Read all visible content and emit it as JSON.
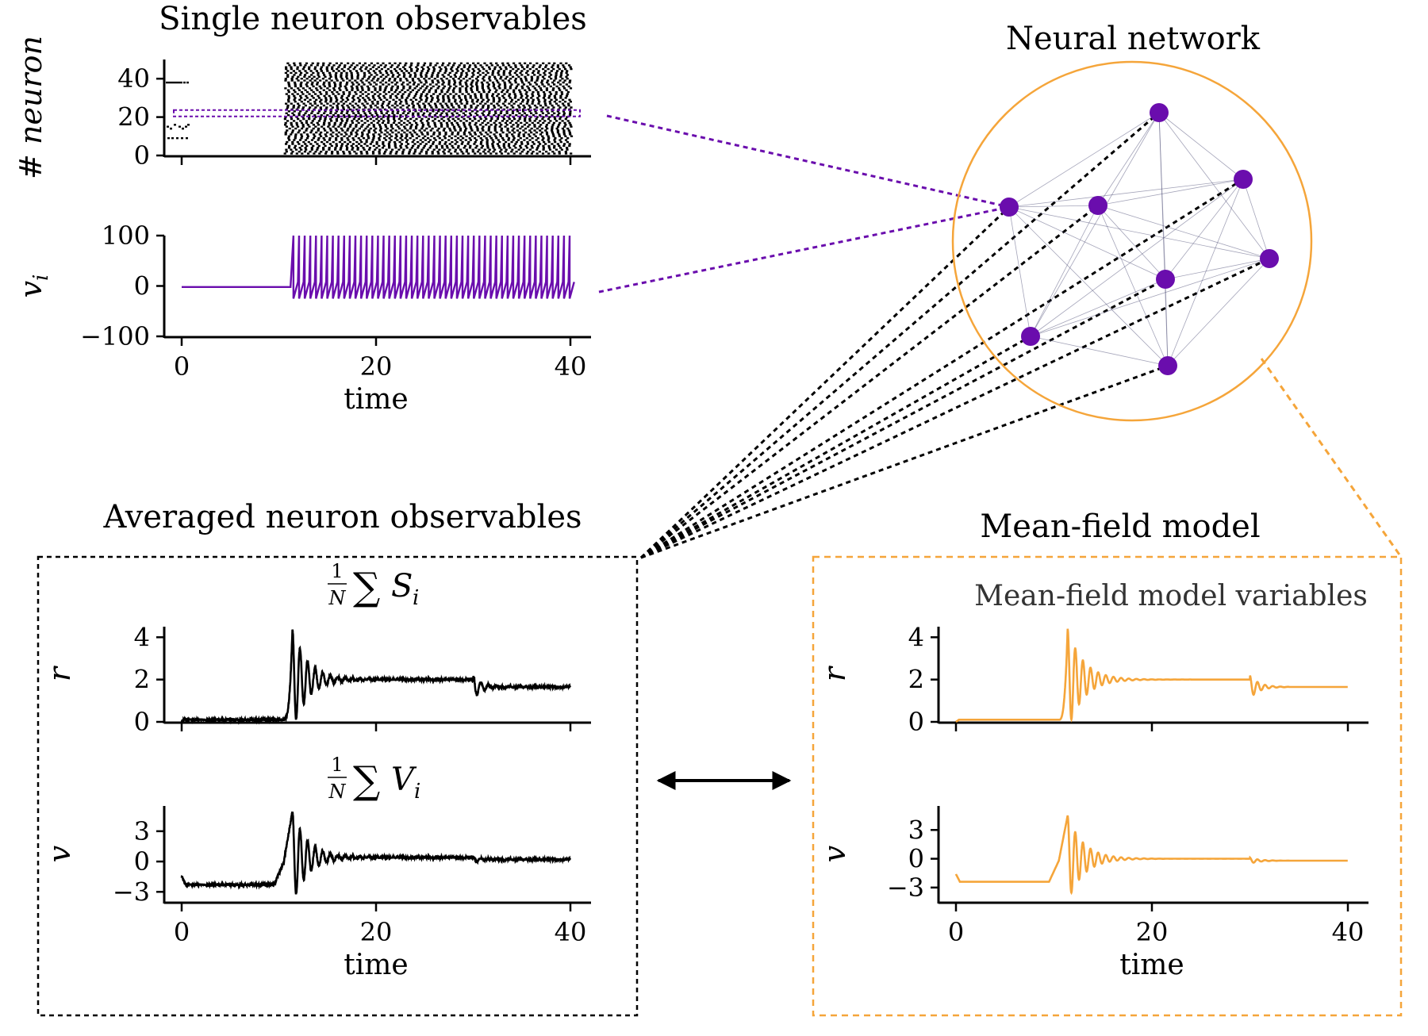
{
  "titles": {
    "single": "Single neuron observables",
    "network": "Neural network",
    "averaged": "Averaged neuron observables",
    "meanfield": "Mean-field model",
    "meanfield_sub": "Mean-field model variables"
  },
  "formulas": {
    "rate": {
      "frac": "1/N",
      "sum": "∑",
      "var": "S",
      "sub": "i"
    },
    "volt": {
      "frac": "1/N",
      "sum": "∑",
      "var": "V",
      "sub": "i"
    }
  },
  "colors": {
    "purple": "#6a0dad",
    "orange": "#f5a53a",
    "black": "#000000"
  },
  "chart_data": [
    {
      "id": "raster",
      "type": "scatter",
      "ylabel": "# neuron",
      "ylim": [
        0,
        50
      ],
      "yticks": [
        "0",
        "20",
        "40"
      ],
      "xlim": [
        -0.5,
        42
      ],
      "onset_time": 10.5,
      "highlight_neuron": 22
    },
    {
      "id": "single-voltage",
      "type": "line",
      "ylabel": "v",
      "ylabel_sub": "i",
      "ylim": [
        -100,
        100
      ],
      "yticks": [
        "−100",
        "0",
        "100"
      ],
      "xticks": [
        "0",
        "20",
        "40"
      ],
      "xlabel": "time",
      "xlim": [
        -0.5,
        42
      ],
      "baseline": -2,
      "first_spike": 11.5,
      "spike_period": 0.58
    },
    {
      "id": "avg-rate",
      "type": "line",
      "ylabel": "r",
      "ylim": [
        0,
        4.5
      ],
      "yticks": [
        "0",
        "2",
        "4"
      ],
      "xlim": [
        -0.5,
        42
      ],
      "baseline": 0.1,
      "steady1": 2.0,
      "steady2": 1.65,
      "peak": 4.4,
      "onset": 10.5,
      "switch": 30
    },
    {
      "id": "avg-voltage",
      "type": "line",
      "ylabel": "v",
      "ylim": [
        -4,
        5.5
      ],
      "yticks": [
        "−3",
        "0",
        "3"
      ],
      "xticks": [
        "0",
        "20",
        "40"
      ],
      "xlabel": "time",
      "xlim": [
        -0.5,
        42
      ],
      "baseline": -2.3,
      "steady1": 0.4,
      "steady2": 0.2,
      "peak": 5.0,
      "trough": -3.7,
      "onset": 10.5,
      "switch": 30
    },
    {
      "id": "mf-rate",
      "type": "line",
      "ylabel": "r",
      "ylim": [
        0,
        4.5
      ],
      "yticks": [
        "0",
        "2",
        "4"
      ],
      "xlim": [
        -0.5,
        42
      ],
      "baseline": 0.1,
      "steady1": 2.0,
      "steady2": 1.65,
      "peak": 4.4,
      "onset": 10.5,
      "switch": 30
    },
    {
      "id": "mf-voltage",
      "type": "line",
      "ylabel": "v",
      "ylim": [
        -4.5,
        5.5
      ],
      "yticks": [
        "−3",
        "0",
        "3"
      ],
      "xticks": [
        "0",
        "20",
        "40"
      ],
      "xlabel": "time",
      "xlim": [
        -0.5,
        42
      ],
      "baseline": -2.4,
      "steady1": 0.0,
      "steady2": -0.2,
      "peak": 4.5,
      "trough": -4.3,
      "onset": 10.5,
      "switch": 30
    }
  ],
  "network": {
    "nodes": [
      {
        "id": "n1"
      },
      {
        "id": "n2"
      },
      {
        "id": "n3"
      },
      {
        "id": "n4"
      },
      {
        "id": "n5"
      },
      {
        "id": "n6"
      },
      {
        "id": "n7"
      },
      {
        "id": "n8"
      }
    ]
  }
}
